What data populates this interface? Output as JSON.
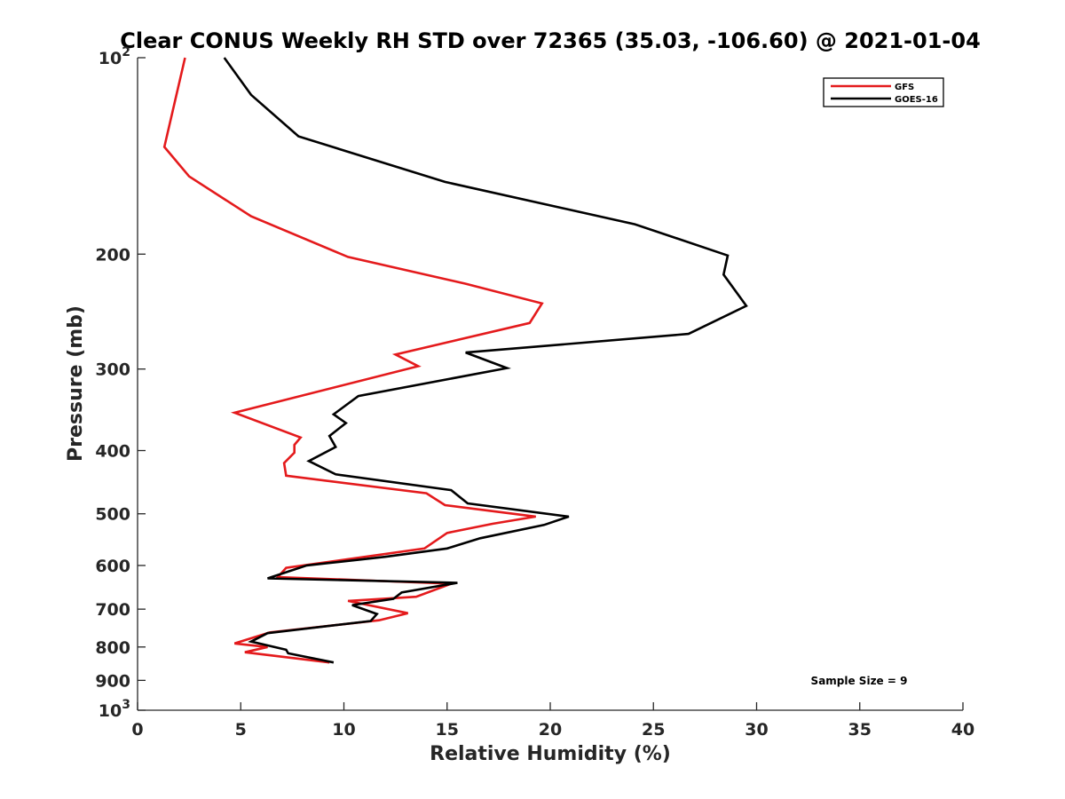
{
  "chart_data": {
    "type": "line",
    "title": "Clear CONUS Weekly RH STD over 72365 (35.03, -106.60) @ 2021-01-04",
    "xlabel": "Relative Humidity (%)",
    "ylabel": "Pressure (mb)",
    "xlim": [
      0,
      40
    ],
    "ylim": [
      100,
      1000
    ],
    "y_scale": "log",
    "y_reversed": true,
    "grid": false,
    "legend_position": "top-right",
    "x_ticks": [
      {
        "value": 0,
        "label": "0"
      },
      {
        "value": 5,
        "label": "5"
      },
      {
        "value": 10,
        "label": "10"
      },
      {
        "value": 15,
        "label": "15"
      },
      {
        "value": 20,
        "label": "20"
      },
      {
        "value": 25,
        "label": "25"
      },
      {
        "value": 30,
        "label": "30"
      },
      {
        "value": 35,
        "label": "35"
      },
      {
        "value": 40,
        "label": "40"
      }
    ],
    "y_ticks": [
      {
        "value": 100,
        "base": "10",
        "exp": "2"
      },
      {
        "value": 200,
        "label": "200"
      },
      {
        "value": 300,
        "label": "300"
      },
      {
        "value": 400,
        "label": "400"
      },
      {
        "value": 500,
        "label": "500"
      },
      {
        "value": 600,
        "label": "600"
      },
      {
        "value": 700,
        "label": "700"
      },
      {
        "value": 800,
        "label": "800"
      },
      {
        "value": 900,
        "label": "900"
      },
      {
        "value": 1000,
        "base": "10",
        "exp": "3"
      }
    ],
    "annotation": "Sample Size = 9",
    "series": [
      {
        "name": "GFS",
        "color": "#e41a1c",
        "points": [
          [
            2.3,
            100
          ],
          [
            1.3,
            137
          ],
          [
            2.5,
            152
          ],
          [
            5.5,
            175
          ],
          [
            10.2,
            202
          ],
          [
            15.9,
            222
          ],
          [
            19.6,
            238
          ],
          [
            19.0,
            255
          ],
          [
            12.5,
            285
          ],
          [
            13.6,
            297
          ],
          [
            4.7,
            350
          ],
          [
            7.9,
            382
          ],
          [
            7.6,
            392
          ],
          [
            7.6,
            403
          ],
          [
            7.1,
            418
          ],
          [
            7.2,
            437
          ],
          [
            14.0,
            465
          ],
          [
            14.9,
            485
          ],
          [
            19.3,
            505
          ],
          [
            17.2,
            518
          ],
          [
            15.0,
            535
          ],
          [
            13.9,
            565
          ],
          [
            7.2,
            605
          ],
          [
            6.8,
            625
          ],
          [
            15.2,
            640
          ],
          [
            13.5,
            670
          ],
          [
            10.2,
            680
          ],
          [
            13.1,
            710
          ],
          [
            11.7,
            728
          ],
          [
            6.4,
            760
          ],
          [
            4.7,
            790
          ],
          [
            6.3,
            800
          ],
          [
            5.2,
            815
          ],
          [
            9.3,
            845
          ]
        ]
      },
      {
        "name": "GOES-16",
        "color": "#000000",
        "points": [
          [
            4.2,
            100
          ],
          [
            5.5,
            114
          ],
          [
            7.8,
            132
          ],
          [
            14.9,
            155
          ],
          [
            24.1,
            180
          ],
          [
            28.6,
            201
          ],
          [
            28.4,
            215
          ],
          [
            29.5,
            240
          ],
          [
            26.7,
            265
          ],
          [
            15.9,
            283
          ],
          [
            17.9,
            299
          ],
          [
            10.7,
            330
          ],
          [
            9.5,
            352
          ],
          [
            10.1,
            363
          ],
          [
            9.3,
            380
          ],
          [
            9.6,
            395
          ],
          [
            8.3,
            415
          ],
          [
            9.6,
            435
          ],
          [
            15.2,
            460
          ],
          [
            16.0,
            482
          ],
          [
            20.9,
            505
          ],
          [
            19.7,
            520
          ],
          [
            16.6,
            545
          ],
          [
            15.0,
            565
          ],
          [
            12.0,
            582
          ],
          [
            8.2,
            600
          ],
          [
            6.3,
            628
          ],
          [
            15.5,
            638
          ],
          [
            12.8,
            660
          ],
          [
            12.4,
            675
          ],
          [
            10.4,
            690
          ],
          [
            11.6,
            712
          ],
          [
            11.3,
            730
          ],
          [
            6.3,
            762
          ],
          [
            5.5,
            785
          ],
          [
            7.2,
            808
          ],
          [
            7.3,
            818
          ],
          [
            9.5,
            845
          ]
        ]
      }
    ]
  }
}
